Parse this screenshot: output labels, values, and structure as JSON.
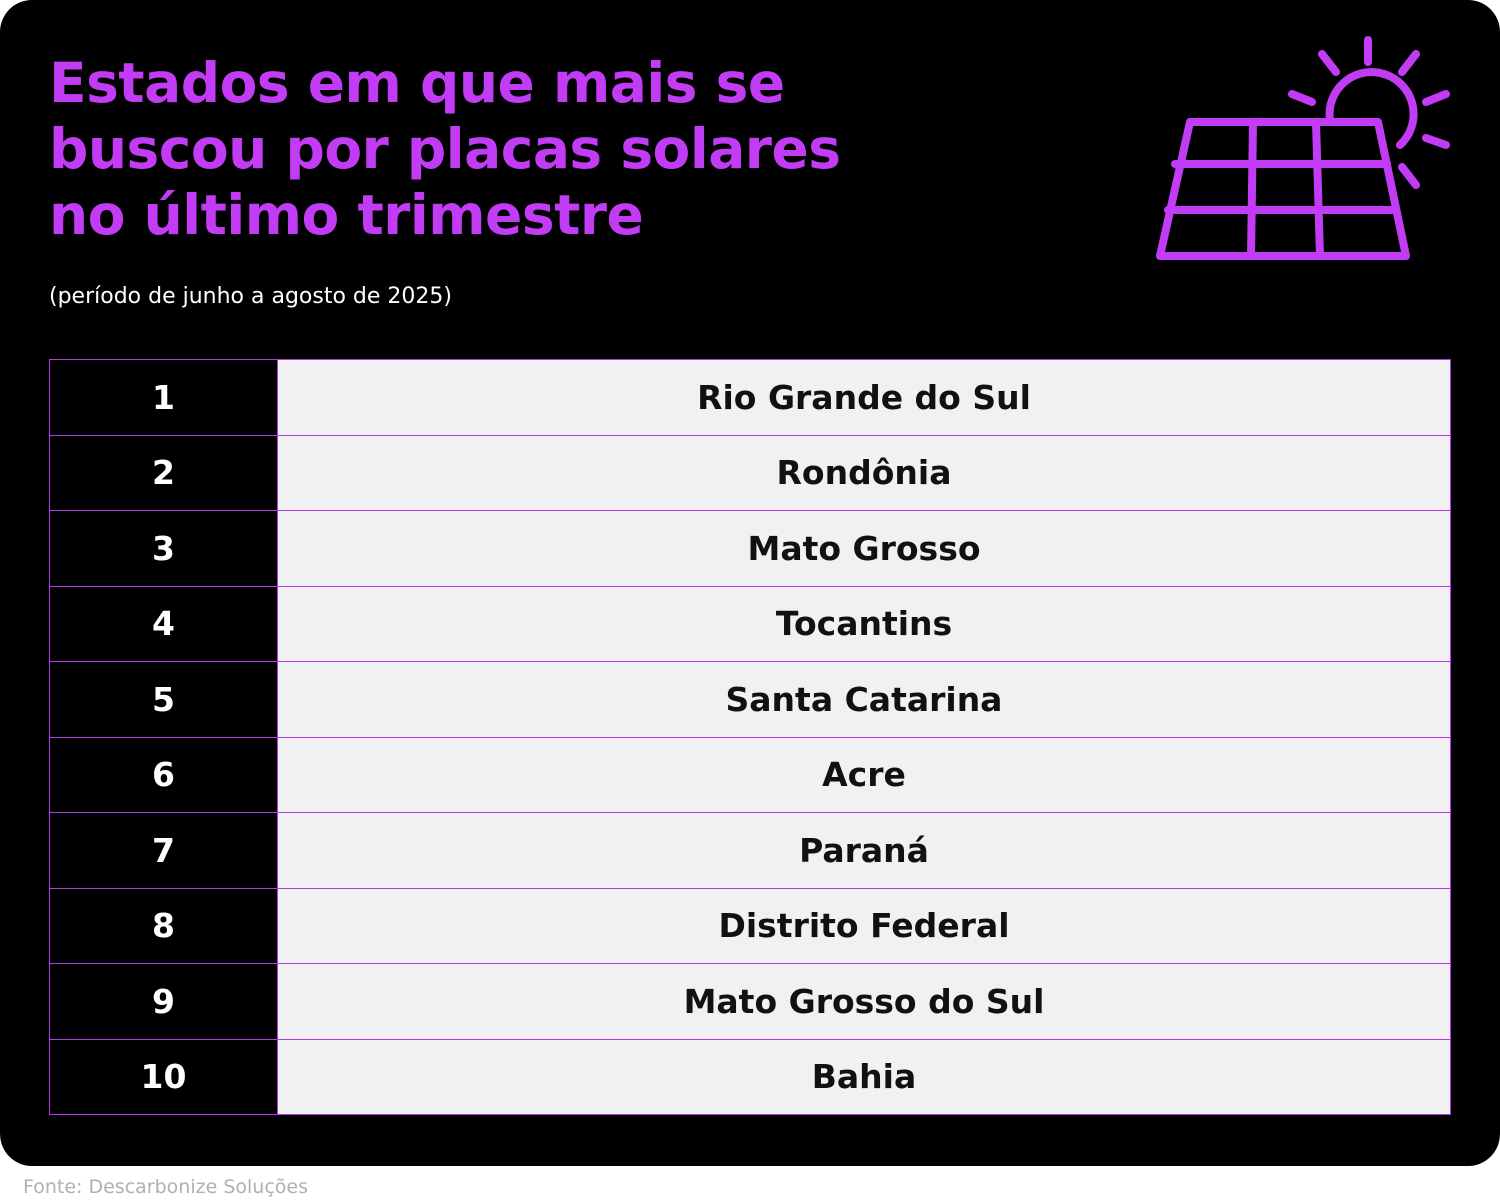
{
  "header": {
    "title": "Estados em que mais se buscou por placas solares no último trimestre",
    "subtitle": "(período de junho a agosto de 2025)"
  },
  "table": {
    "rows": [
      [
        1,
        "Rio Grande do Sul"
      ],
      [
        2,
        "Rondônia"
      ],
      [
        3,
        "Mato Grosso"
      ],
      [
        4,
        "Tocantins"
      ],
      [
        5,
        "Santa Catarina"
      ],
      [
        6,
        "Acre"
      ],
      [
        7,
        "Paraná"
      ],
      [
        8,
        "Distrito Federal"
      ],
      [
        9,
        "Mato Grosso do Sul"
      ],
      [
        10,
        "Bahia"
      ]
    ]
  },
  "footer": {
    "source": "Fonte: Descarbonize Soluções"
  }
}
